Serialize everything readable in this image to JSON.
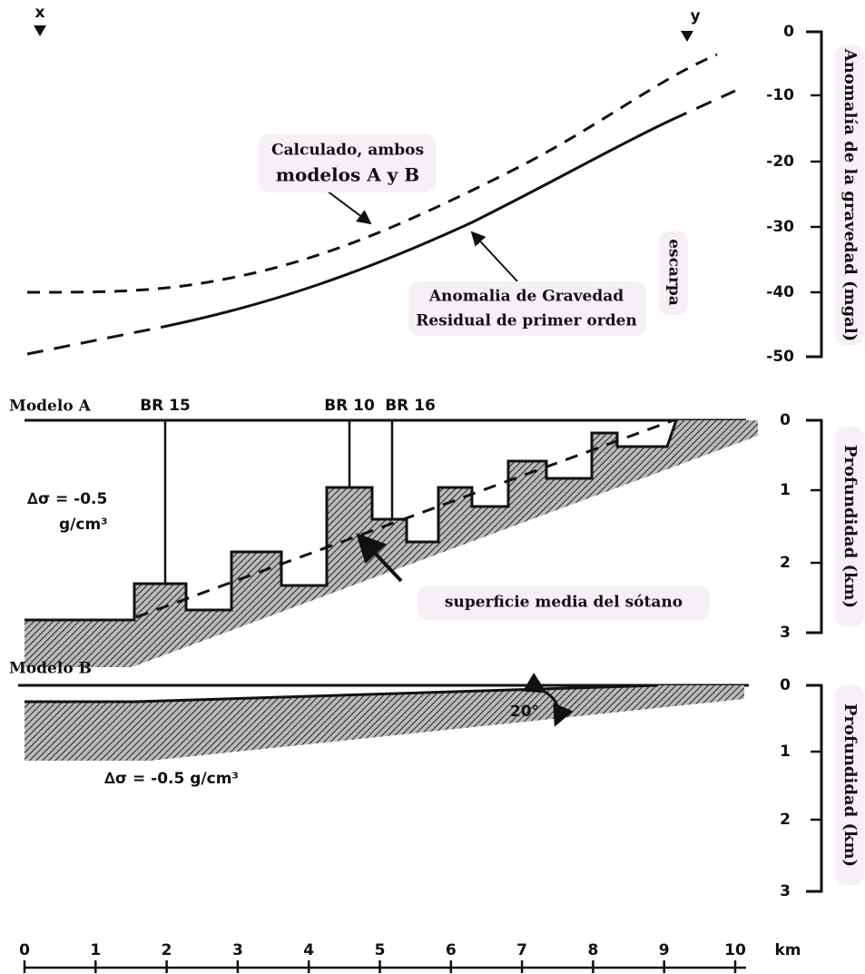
{
  "markers": {
    "left": "x",
    "right": "y"
  },
  "gravity_panel": {
    "axis_label": "Anomalía de la gravedad (mgal)",
    "ticks": [
      "0",
      "-10",
      "-20",
      "-30",
      "-40",
      "-50"
    ],
    "calculated_label": [
      "Calculado, ambos",
      "modelos A y B"
    ],
    "residual_label": [
      "Anomalia de Gravedad",
      "Residual de primer orden"
    ],
    "escarpa": "escarpa"
  },
  "model_a": {
    "title": "Modelo A",
    "wells": [
      "BR 15",
      "BR 10",
      "BR 16"
    ],
    "density": [
      "∆σ = -0.5",
      "g/cm³"
    ],
    "annotation": "superficie media del sótano",
    "axis_label": "Profundidad (km)",
    "ticks": [
      "0",
      "1",
      "2",
      "3"
    ]
  },
  "model_b": {
    "title": "Modelo B",
    "angle": "20°",
    "density": "∆σ = -0.5 g/cm³",
    "axis_label": "Profundidad (km)",
    "ticks": [
      "0",
      "1",
      "2",
      "3"
    ]
  },
  "x_axis": {
    "ticks": [
      "0",
      "1",
      "2",
      "3",
      "4",
      "5",
      "6",
      "7",
      "8",
      "9",
      "10"
    ],
    "unit": "km"
  }
}
